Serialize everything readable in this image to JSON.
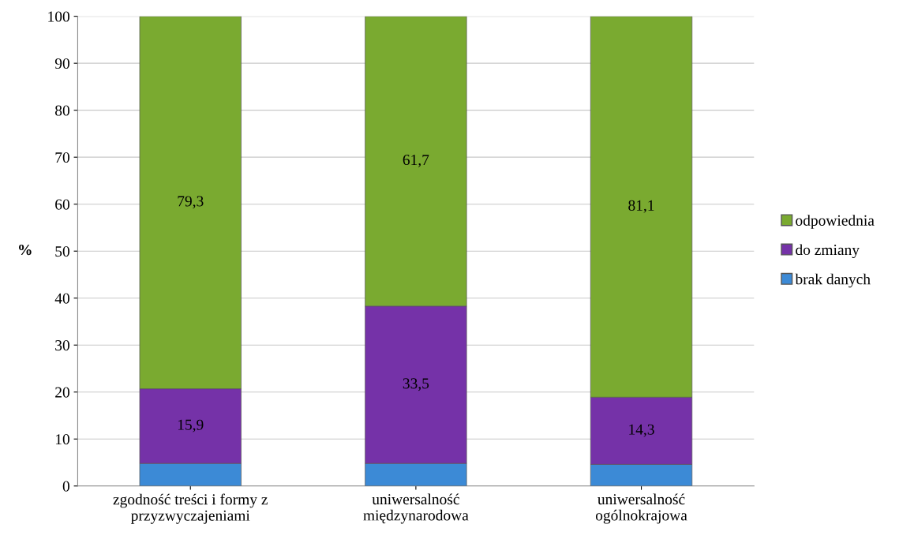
{
  "chart_data": {
    "type": "bar",
    "stacked": true,
    "ylabel": "%",
    "categories": [
      "zgodność treści i formy z\nprzyzwyczajeniami",
      "uniwersalność\nmiędzynarodowa",
      "uniwersalność\nogólnokrajowa"
    ],
    "series": [
      {
        "name": "brak danych",
        "color": "#3c8ad6",
        "values": [
          4.8,
          4.8,
          4.6
        ],
        "value_labels": [
          null,
          null,
          null
        ]
      },
      {
        "name": "do zmiany",
        "color": "#7532a8",
        "values": [
          15.9,
          33.5,
          14.3
        ],
        "value_labels": [
          "15,9",
          "33,5",
          "14,3"
        ]
      },
      {
        "name": "odpowiednia",
        "color": "#7aaa30",
        "values": [
          79.3,
          61.7,
          81.1
        ],
        "value_labels": [
          "79,3",
          "61,7",
          "81,1"
        ]
      }
    ],
    "ylim": [
      0,
      100
    ],
    "yticks": [
      0,
      10,
      20,
      30,
      40,
      50,
      60,
      70,
      80,
      90,
      100
    ],
    "grid": "y",
    "legend": "right"
  }
}
